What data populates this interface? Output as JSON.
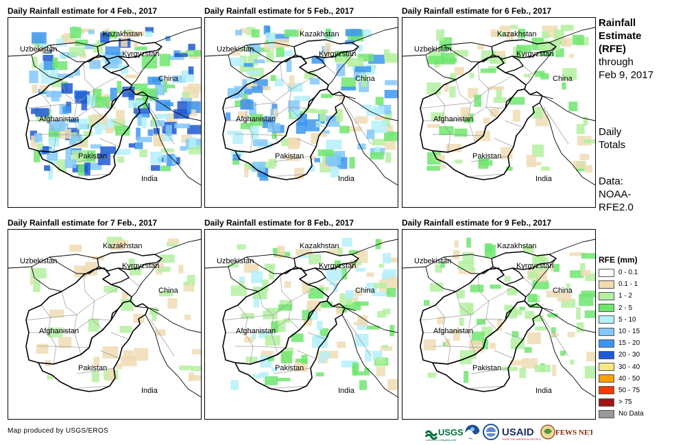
{
  "panels": [
    {
      "title": "Daily Rainfall estimate for 4 Feb., 2017",
      "rain_level": 1.0
    },
    {
      "title": "Daily Rainfall estimate for 5 Feb., 2017",
      "rain_level": 0.8
    },
    {
      "title": "Daily Rainfall estimate for 6 Feb., 2017",
      "rain_level": 0.3
    },
    {
      "title": "Daily Rainfall estimate for 7 Feb., 2017",
      "rain_level": 0.1
    },
    {
      "title": "Daily Rainfall estimate for 8 Feb., 2017",
      "rain_level": 0.5
    },
    {
      "title": "Daily Rainfall estimate for 9 Feb., 2017",
      "rain_level": 0.3
    }
  ],
  "map_labels": {
    "kazakhstan": "Kazakhstan",
    "uzbekistan": "Uzbekistan",
    "kyrgyzstan": "Kyrgyzstan",
    "china": "China",
    "afghanistan": "Afghanistan",
    "pakistan": "Pakistan",
    "india": "India"
  },
  "side_text": {
    "line1": "Rainfall",
    "line2": "Estimate",
    "line3": "(RFE)",
    "line4": "through",
    "line5": "Feb 9, 2017",
    "totals1": "Daily",
    "totals2": "Totals",
    "data1": "Data:",
    "data2": "NOAA-",
    "data3": "RFE2.0"
  },
  "legend": {
    "title": "RFE (mm)",
    "items": [
      {
        "label": "0 - 0.1",
        "color": "#ffffff"
      },
      {
        "label": "0.1 - 1",
        "color": "#f0dcb4"
      },
      {
        "label": "1 - 2",
        "color": "#b4f0a0"
      },
      {
        "label": "2 - 5",
        "color": "#6ee66e"
      },
      {
        "label": "5 - 10",
        "color": "#b4f0fa"
      },
      {
        "label": "10 - 15",
        "color": "#82c8fa"
      },
      {
        "label": "15 - 20",
        "color": "#3c96f0"
      },
      {
        "label": "20 - 30",
        "color": "#1e5ad2"
      },
      {
        "label": "30 - 40",
        "color": "#fae682"
      },
      {
        "label": "40 - 50",
        "color": "#faa000"
      },
      {
        "label": "50 - 75",
        "color": "#f03c00"
      },
      {
        "label": "> 75",
        "color": "#a01414"
      },
      {
        "label": "No Data",
        "color": "#999999"
      }
    ]
  },
  "credit": "Map produced by USGS/EROS",
  "logos": {
    "usgs": "USGS",
    "usgs_tagline": "science for a changing world",
    "usaid": "USAID",
    "usaid_tagline": "FROM THE AMERICAN PEOPLE",
    "fewsnet": "FEWS NET"
  }
}
